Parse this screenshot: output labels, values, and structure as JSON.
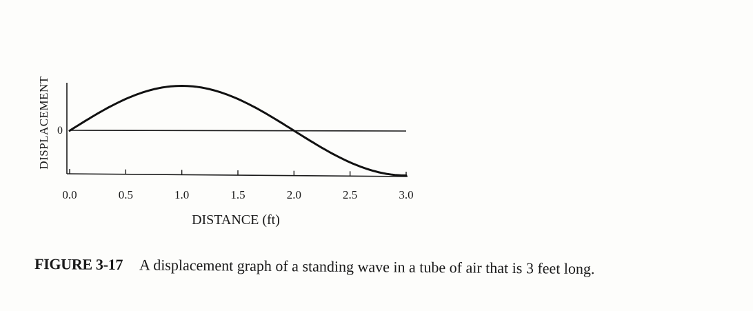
{
  "chart_data": {
    "type": "line",
    "xlabel": "DISTANCE (ft)",
    "ylabel": "DISPLACEMENT",
    "x_ticks": [
      "0.0",
      "0.5",
      "1.0",
      "1.5",
      "2.0",
      "2.5",
      "3.0"
    ],
    "y_ticks": [
      "0"
    ],
    "xlim": [
      0,
      3
    ],
    "ylim": [
      -1,
      1
    ],
    "grid": false,
    "series": [
      {
        "x": [
          0,
          0.25,
          0.5,
          0.75,
          1.0,
          1.25,
          1.5,
          1.75,
          2.0,
          2.25,
          2.5,
          2.75,
          3.0
        ],
        "y": [
          0,
          0.38,
          0.71,
          0.92,
          1.0,
          0.92,
          0.71,
          0.38,
          0,
          -0.38,
          -0.71,
          -0.92,
          -1.0
        ]
      }
    ]
  },
  "caption": {
    "figure_number": "FIGURE 3-17",
    "text": "A displacement graph of a standing wave in a tube of air that is 3 feet long."
  }
}
